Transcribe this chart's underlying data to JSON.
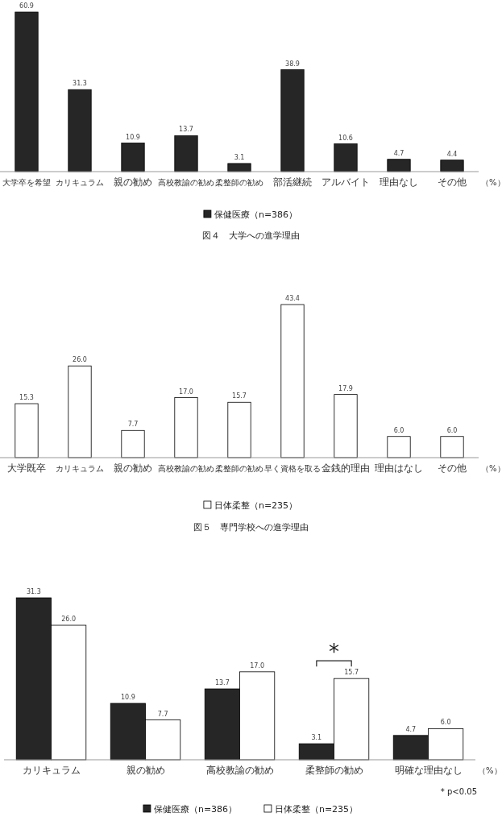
{
  "chart_data": [
    {
      "type": "bar",
      "title": "図４　大学への進学理由",
      "xlabel": "（%）",
      "legend": "bottom",
      "categories": [
        "大学卒を希望",
        "カリキュラム",
        "親の勧め",
        "高校教諭の勧め",
        "柔整師の勧め",
        "部活継続",
        "アルバイト",
        "理由なし",
        "その他"
      ],
      "series": [
        {
          "name": "保健医療（n=386）",
          "color": "#262626",
          "values": [
            60.9,
            31.3,
            10.9,
            13.7,
            3.1,
            38.9,
            10.6,
            4.7,
            4.4
          ],
          "value_labels": [
            "60.9",
            "31.3",
            "10.9",
            "13.7",
            "3.1",
            "38.9",
            "10.6",
            "4.7",
            "4.4"
          ]
        }
      ]
    },
    {
      "type": "bar",
      "title": "図５　専門学校への進学理由",
      "xlabel": "（%）",
      "legend": "bottom",
      "categories": [
        "大学既卒",
        "カリキュラム",
        "親の勧め",
        "高校教諭の勧め",
        "柔整師の勧め",
        "早く資格を取る",
        "金銭的理由",
        "理由はなし",
        "その他"
      ],
      "series": [
        {
          "name": "日体柔整（n=235）",
          "color": "#ffffff",
          "values": [
            15.3,
            26.0,
            7.7,
            17.0,
            15.7,
            43.4,
            17.9,
            6.0,
            6.0
          ],
          "value_labels": [
            "15.3",
            "26.0",
            "7.7",
            "17.0",
            "15.7",
            "43.4",
            "17.9",
            "6.0",
            "6.0"
          ]
        }
      ]
    },
    {
      "type": "bar",
      "xlabel": "（%）",
      "legend": "bottom",
      "categories": [
        "カリキュラム",
        "親の勧め",
        "高校教諭の勧め",
        "柔整師の勧め",
        "明確な理由なし"
      ],
      "series": [
        {
          "name": "保健医療（n=386）",
          "color": "#262626",
          "values": [
            31.3,
            10.9,
            13.7,
            3.1,
            4.7
          ],
          "value_labels": [
            "31.3",
            "10.9",
            "13.7",
            "3.1",
            "4.7"
          ]
        },
        {
          "name": "日体柔整（n=235）",
          "color": "#ffffff",
          "values": [
            26.0,
            7.7,
            17.0,
            15.7,
            6.0
          ],
          "value_labels": [
            "26.0",
            "7.7",
            "17.0",
            "15.7",
            "6.0"
          ]
        }
      ],
      "annotations": [
        "*",
        "* p<0.05"
      ]
    }
  ]
}
